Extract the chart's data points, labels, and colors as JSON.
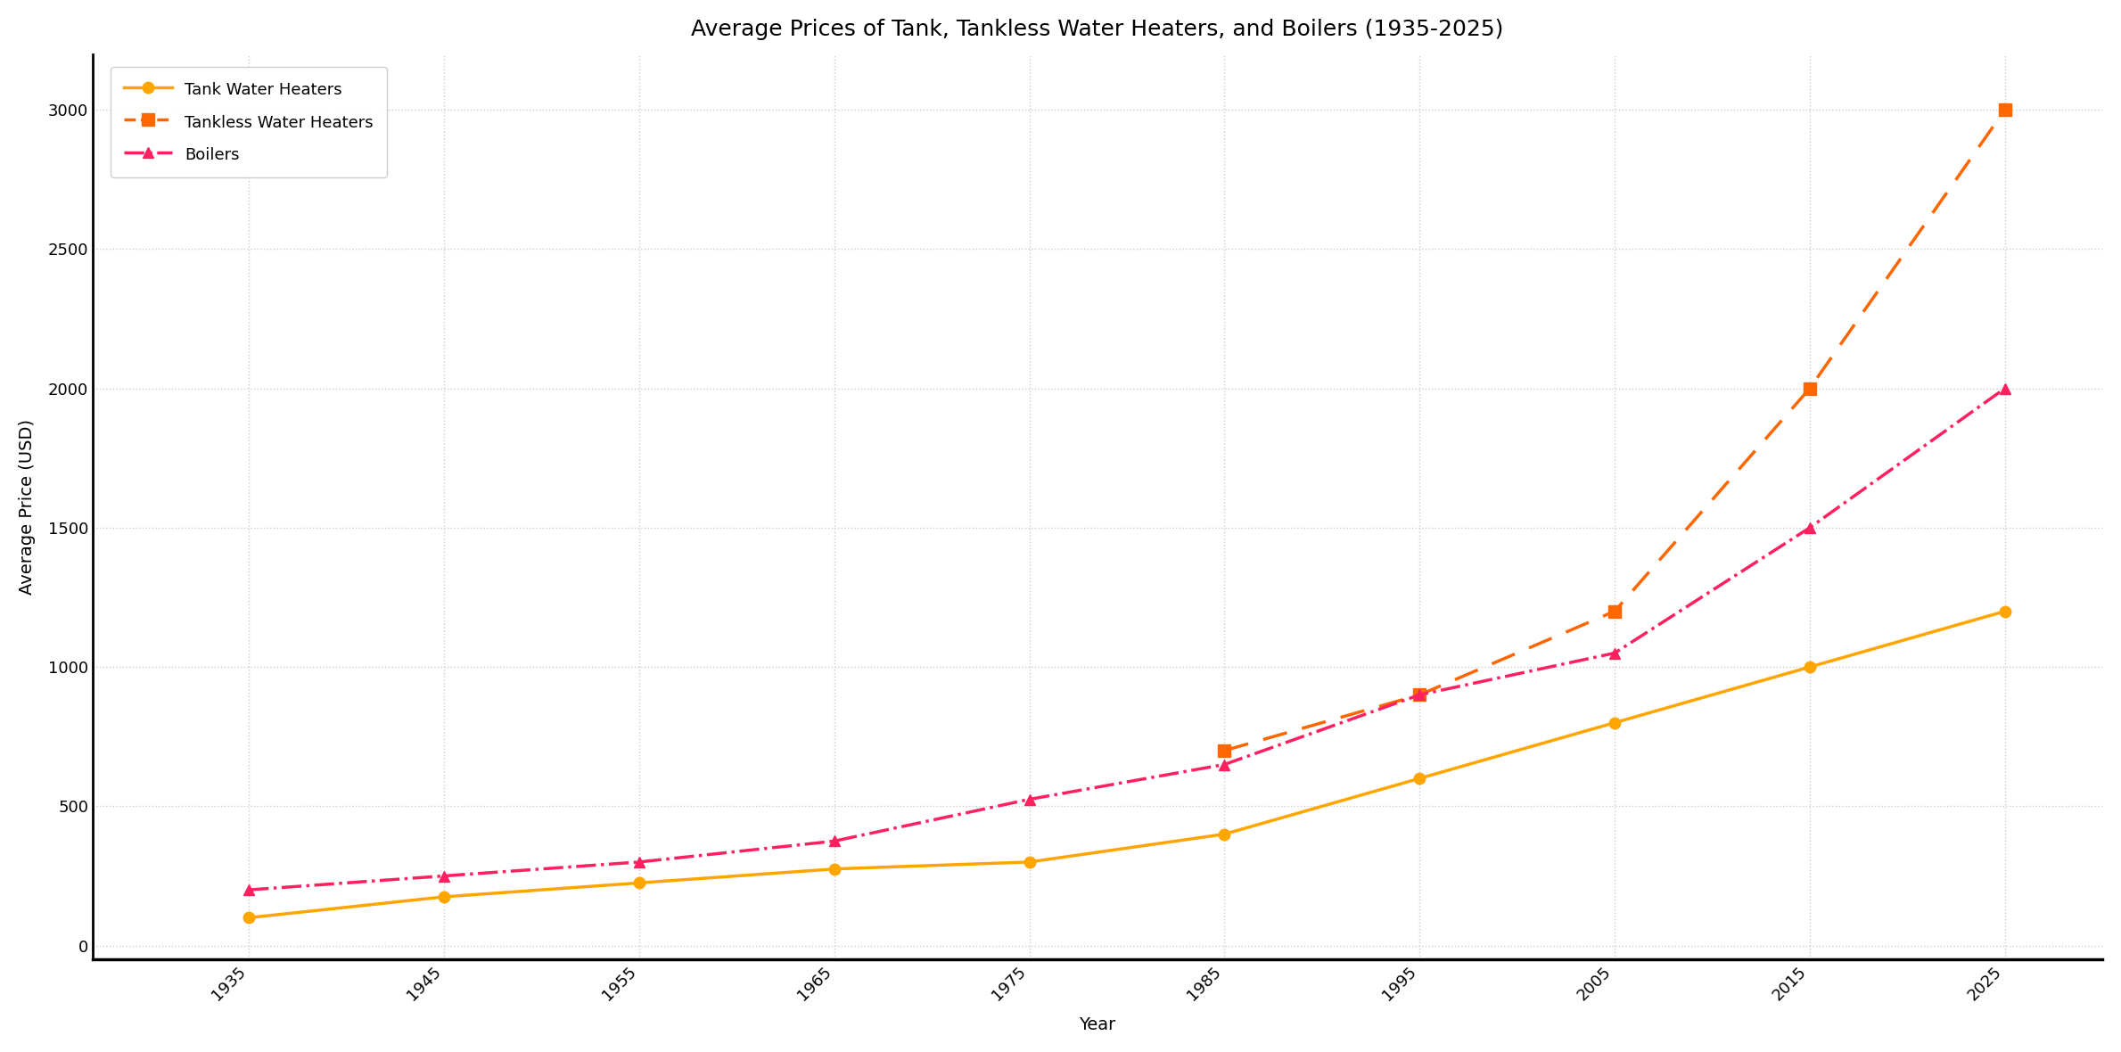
{
  "title": "Average Prices of Tank, Tankless Water Heaters, and Boilers (1935-2025)",
  "xlabel": "Year",
  "ylabel": "Average Price (USD)",
  "years": [
    1935,
    1945,
    1955,
    1965,
    1975,
    1985,
    1995,
    2005,
    2015,
    2025
  ],
  "tank": [
    100,
    175,
    225,
    275,
    300,
    400,
    600,
    800,
    1000,
    1200
  ],
  "tankless": [
    null,
    null,
    null,
    null,
    null,
    700,
    900,
    1200,
    2000,
    3000
  ],
  "boilers": [
    200,
    250,
    300,
    375,
    525,
    650,
    900,
    1050,
    1500,
    2000
  ],
  "tank_color": "#FFA500",
  "tankless_color": "#FF6600",
  "boiler_color": "#FF2060",
  "background_color": "#FFFFFF",
  "grid_color": "#CCCCCC",
  "ylim": [
    -50,
    3200
  ],
  "yticks": [
    0,
    500,
    1000,
    1500,
    2000,
    2500,
    3000
  ],
  "title_fontsize": 18,
  "axis_fontsize": 14,
  "tick_fontsize": 13,
  "legend_fontsize": 13
}
